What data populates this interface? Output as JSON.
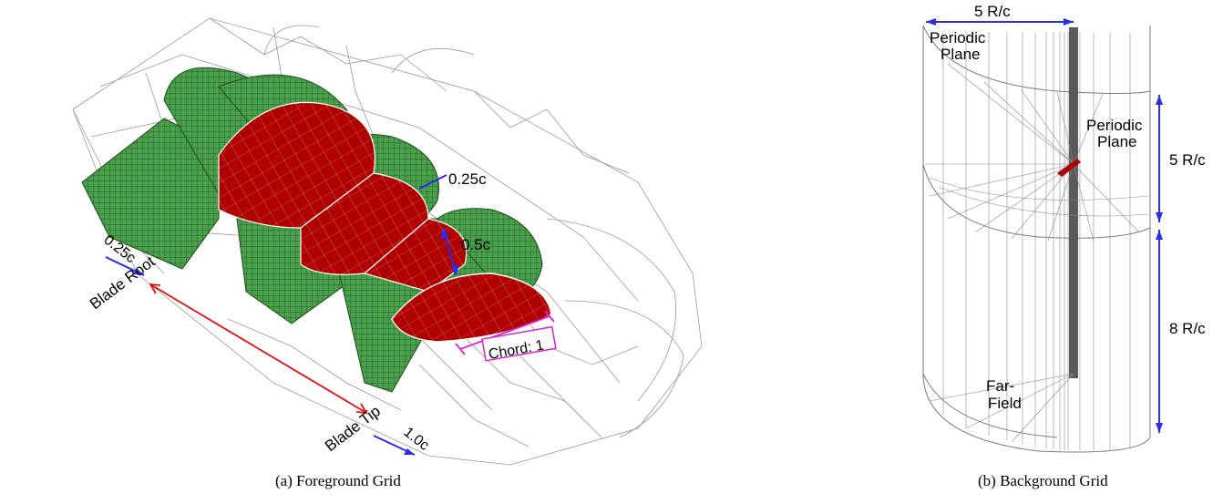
{
  "panel_a": {
    "caption": "(a) Foreground Grid",
    "labels": {
      "dim_025_top": "0.25c",
      "dim_05": "0.5c",
      "dim_025_left": "0.25c",
      "blade_root": "Blade Root",
      "blade_tip": "Blade Tip",
      "dim_10": "1.0c",
      "chord": "Chord: 1"
    }
  },
  "panel_b": {
    "caption": "(b) Background Grid",
    "labels": {
      "top_dim": "5 R/c",
      "periodic_plane_top_1": "Periodic",
      "periodic_plane_top_2": "Plane",
      "periodic_plane_right_1": "Periodic",
      "periodic_plane_right_2": "Plane",
      "right_dim_upper": "5 R/c",
      "right_dim_lower": "8 R/c",
      "far_field_1": "Far-",
      "far_field_2": "Field"
    }
  },
  "colors": {
    "grid_line": "#9a9a9a",
    "green_mesh": "#3f9a3f",
    "red_blade": "#b00000",
    "arrow_blue": "#2b2bf0",
    "arrow_red": "#e01010",
    "chord_box": "#e020d0"
  }
}
